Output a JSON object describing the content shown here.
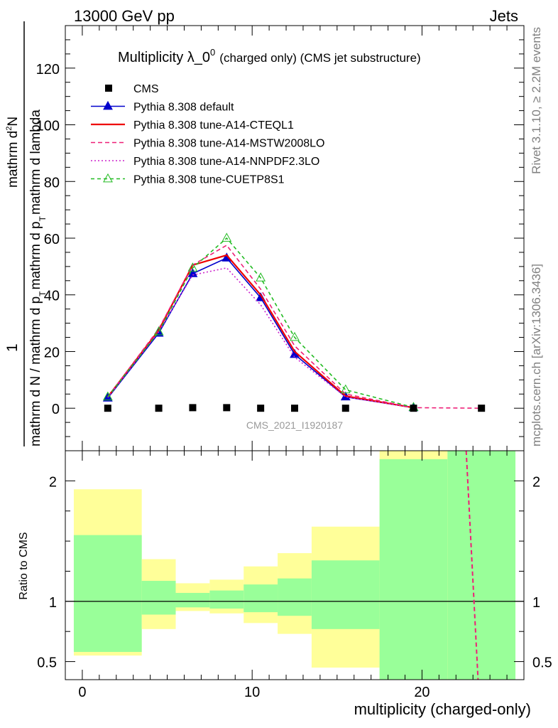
{
  "header": {
    "left": "13000 GeV pp",
    "right": "Jets"
  },
  "side_labels": {
    "rivet": "Rivet 3.1.10, ≥ 2.2M events",
    "mcplots": "mcplots.cern.ch [arXiv:1306.3436]"
  },
  "watermark": "CMS_2021_I1920187",
  "chart_data": [
    {
      "type": "line",
      "title_main": "Multiplicity λ_0",
      "title_sup": "0",
      "title_small": "(charged only) (CMS jet substructure)",
      "ylabel_numerator": "1",
      "ylabel_numerator_right": "mathrm d",
      "ylabel_numerator_sup": "2",
      "ylabel_numerator_end": "N",
      "ylabel_denominator": "mathrm d N / mathrm d p",
      "ylabel_denominator_sub": "T",
      "ylabel_denominator_mid": "mathrm d p",
      "ylabel_denominator_sub2": "T",
      "ylabel_denominator_end": "mathrm d lambda",
      "xlim": [
        -1,
        26
      ],
      "ylim": [
        -15,
        135
      ],
      "yticks": [
        0,
        20,
        40,
        60,
        80,
        100,
        120
      ],
      "ytick_labels": [
        "0",
        "20",
        "40",
        "60",
        "80",
        "100",
        "120"
      ],
      "legend": {
        "placement": "top-left"
      },
      "cms": {
        "name": "CMS",
        "color": "#000000",
        "x": [
          1.5,
          4.5,
          6.5,
          8.5,
          10.5,
          12.5,
          15.5,
          19.5,
          23.5
        ],
        "y": [
          0,
          0,
          0.2,
          0.2,
          0,
          0,
          0,
          0,
          0
        ]
      },
      "series": [
        {
          "name": "Pythia 8.308 default",
          "color": "#0000cc",
          "dash": "",
          "marker": "triangle-filled",
          "x": [
            1.5,
            4.5,
            6.5,
            8.5,
            10.5,
            12.5,
            15.5,
            19.5
          ],
          "y": [
            3.6,
            26.5,
            47.5,
            53,
            39,
            19,
            4,
            0.2
          ]
        },
        {
          "name": "Pythia 8.308 tune-A14-CTEQL1",
          "color": "#ee0000",
          "dash": "",
          "marker": "",
          "x": [
            1.5,
            4.5,
            6.5,
            8.5,
            10.5,
            12.5,
            15.5,
            19.5
          ],
          "y": [
            4,
            27.5,
            50.5,
            54,
            40,
            20,
            4.3,
            0.2
          ]
        },
        {
          "name": "Pythia 8.308 tune-A14-MSTW2008LO",
          "color": "#ee1f77",
          "dash": "6,4",
          "marker": "",
          "x": [
            1.5,
            4.5,
            6.5,
            8.5,
            10.5,
            12.5,
            15.5,
            19.5,
            23.5
          ],
          "y": [
            4,
            28,
            50.5,
            57.5,
            42,
            22,
            5,
            0.2,
            0
          ]
        },
        {
          "name": "Pythia 8.308 tune-A14-NNPDF2.3LO",
          "color": "#cc22cc",
          "dash": "2,3",
          "marker": "",
          "x": [
            1.5,
            4.5,
            6.5,
            8.5,
            10.5,
            12.5,
            15.5,
            19.5
          ],
          "y": [
            3.8,
            27,
            47,
            49.5,
            36.5,
            18,
            4,
            0.2
          ]
        },
        {
          "name": "Pythia 8.308 tune-CUETP8S1",
          "color": "#22bb22",
          "dash": "5,4",
          "marker": "triangle-open",
          "x": [
            1.5,
            4.5,
            6.5,
            8.5,
            10.5,
            12.5,
            15.5,
            19.5
          ],
          "y": [
            4,
            27,
            49.5,
            60,
            46,
            25,
            6.5,
            0.3
          ]
        }
      ]
    },
    {
      "type": "area",
      "ylabel": "Ratio to CMS",
      "xlabel": "multiplicity (charged-only)",
      "xlim": [
        -1,
        26
      ],
      "ylim": [
        0.35,
        2.25
      ],
      "xticks": [
        0,
        10,
        20
      ],
      "xtick_labels": [
        "0",
        "10",
        "20"
      ],
      "yticks": [
        0.5,
        1,
        2
      ],
      "ytick_labels": [
        "0.5",
        "1",
        "2"
      ],
      "band_colors": {
        "outer": "#ffff99",
        "inner": "#99ff99"
      },
      "bins": [
        {
          "lo": -0.5,
          "hi": 3.5,
          "inner_lo": 0.58,
          "inner_hi": 1.55,
          "outer_lo": 0.55,
          "outer_hi": 1.93
        },
        {
          "lo": 3.5,
          "hi": 5.5,
          "inner_lo": 0.89,
          "inner_hi": 1.17,
          "outer_lo": 0.77,
          "outer_hi": 1.35
        },
        {
          "lo": 5.5,
          "hi": 7.5,
          "inner_lo": 0.95,
          "inner_hi": 1.07,
          "outer_lo": 0.92,
          "outer_hi": 1.15
        },
        {
          "lo": 7.5,
          "hi": 9.5,
          "inner_lo": 0.94,
          "inner_hi": 1.09,
          "outer_lo": 0.9,
          "outer_hi": 1.18
        },
        {
          "lo": 9.5,
          "hi": 11.5,
          "inner_lo": 0.91,
          "inner_hi": 1.14,
          "outer_lo": 0.82,
          "outer_hi": 1.29
        },
        {
          "lo": 11.5,
          "hi": 13.5,
          "inner_lo": 0.88,
          "inner_hi": 1.19,
          "outer_lo": 0.73,
          "outer_hi": 1.4
        },
        {
          "lo": 13.5,
          "hi": 17.5,
          "inner_lo": 0.77,
          "inner_hi": 1.34,
          "outer_lo": 0.45,
          "outer_hi": 1.62
        },
        {
          "lo": 17.5,
          "hi": 21.5,
          "inner_lo": 0.35,
          "inner_hi": 2.18,
          "outer_lo": 0.35,
          "outer_hi": 2.25
        },
        {
          "lo": 21.5,
          "hi": 25.5,
          "inner_lo": 0.35,
          "inner_hi": 2.25,
          "outer_lo": 0.35,
          "outer_hi": 2.25
        }
      ],
      "ratio_lines": [
        {
          "series": "Pythia 8.308 tune-A14-MSTW2008LO",
          "color": "#ee1f77",
          "dash": "6,4",
          "x": [
            22.6,
            23.3
          ],
          "y": [
            2.25,
            0.35
          ]
        }
      ]
    }
  ]
}
